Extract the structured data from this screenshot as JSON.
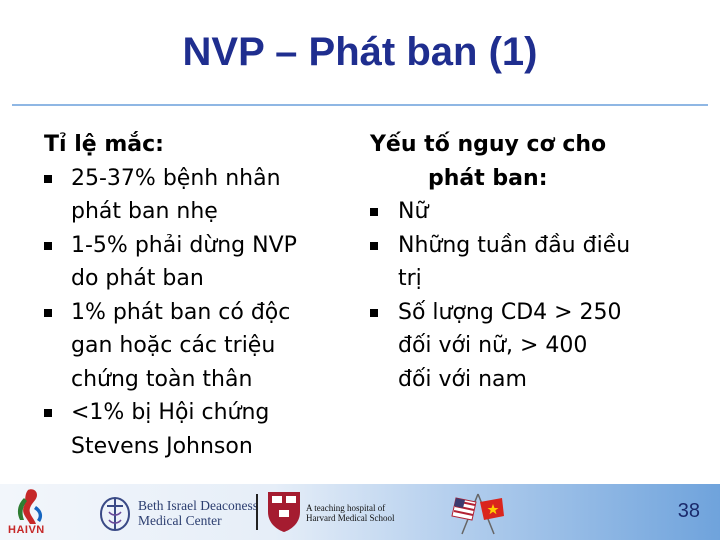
{
  "slide": {
    "title": "NVP – Phát ban (1)",
    "page_number": "38"
  },
  "left_column": {
    "heading": "Tỉ lệ mắc:",
    "bullets": [
      {
        "line1": "25-37% bệnh nhân",
        "line2": "phát ban nhẹ"
      },
      {
        "line1": "1-5% phải dừng NVP",
        "line2": "do phát ban"
      },
      {
        "line1": "1% phát ban có độc",
        "line2": "gan hoặc các triệu",
        "line3": "chứng toàn thân"
      },
      {
        "line1": "<1% bị Hội chứng",
        "line2": "Stevens Johnson"
      }
    ]
  },
  "right_column": {
    "heading_line1": "Yếu tố nguy cơ cho",
    "heading_line2": "phát ban:",
    "bullets": [
      {
        "line1": "Nữ"
      },
      {
        "line1": "Những tuần đầu điều",
        "line2": "trị"
      },
      {
        "line1": "Số lượng CD4 > 250",
        "line2": "đối với nữ,  > 400",
        "line3": "đối với nam"
      }
    ]
  },
  "footer": {
    "haivn_label": "HAIVN",
    "bidmc_line1": "Beth Israel Deaconess",
    "bidmc_line2": "Medical Center",
    "harvard_line1": "A teaching hospital of",
    "harvard_line2": "Harvard Medical School",
    "colors": {
      "haivn_red": "#c62828",
      "title_blue": "#1f2e8f"
    }
  }
}
